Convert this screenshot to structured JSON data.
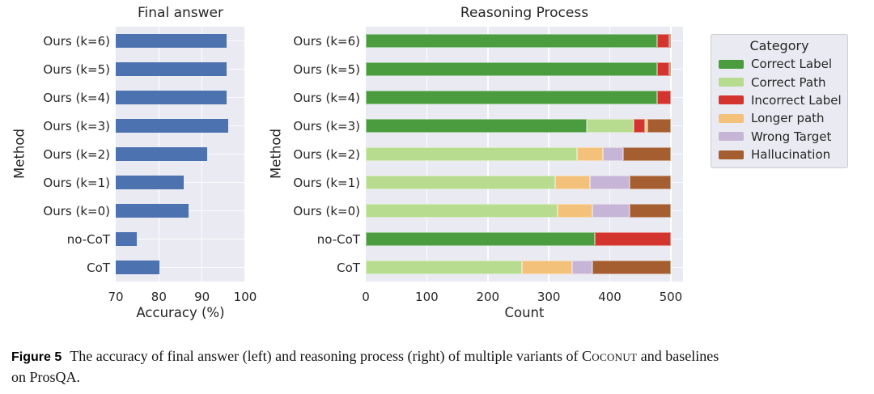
{
  "caption": {
    "label": "Figure 5",
    "text_before": "The accuracy of final answer (left) and reasoning process (right) of multiple variants of ",
    "smallcaps_word": "Coconut",
    "text_after": " and baselines",
    "line2": "on ProsQA."
  },
  "legend": {
    "title": "Category"
  },
  "colors": {
    "plot_background": "#eaeaf2",
    "gridline": "#ffffff",
    "bar_blue": "#4c72b0",
    "correct_label_green": "#4a9c3f",
    "correct_path_light_green": "#b7dc8f",
    "incorrect_label_red": "#d3342e",
    "longer_path_orange": "#f3c17a",
    "wrong_target_purple": "#c7b5d8",
    "hallucination_brown": "#a55e2f",
    "text": "#262626",
    "legend_border": "#cccccc"
  },
  "chart_data": [
    {
      "type": "bar",
      "orientation": "horizontal",
      "title": "Final answer",
      "xlabel": "Accuracy (%)",
      "ylabel": "Method",
      "categories": [
        "Ours (k=6)",
        "Ours (k=5)",
        "Ours (k=4)",
        "Ours (k=3)",
        "Ours (k=2)",
        "Ours (k=1)",
        "Ours (k=0)",
        "no-CoT",
        "CoT"
      ],
      "values": [
        95.6,
        95.6,
        95.7,
        96.0,
        91.1,
        85.8,
        86.9,
        74.9,
        80.2
      ],
      "xlim": [
        70,
        100
      ],
      "xticks": [
        70,
        80,
        90,
        100
      ],
      "bar_color": "#4c72b0",
      "grid": true,
      "legend_position": "none"
    },
    {
      "type": "stacked_bar",
      "orientation": "horizontal",
      "title": "Reasoning Process",
      "xlabel": "Count",
      "ylabel": "Method",
      "categories": [
        "Ours (k=6)",
        "Ours (k=5)",
        "Ours (k=4)",
        "Ours (k=3)",
        "Ours (k=2)",
        "Ours (k=1)",
        "Ours (k=0)",
        "no-CoT",
        "CoT"
      ],
      "series": [
        {
          "name": "Correct Label",
          "color": "#4a9c3f",
          "values": [
            477,
            477,
            478,
            362,
            0,
            0,
            0,
            375,
            0
          ]
        },
        {
          "name": "Correct Path",
          "color": "#b7dc8f",
          "values": [
            0,
            0,
            0,
            77,
            346,
            310,
            315,
            0,
            256
          ]
        },
        {
          "name": "Incorrect Label",
          "color": "#d3342e",
          "values": [
            20,
            20,
            22,
            19,
            0,
            0,
            0,
            125,
            0
          ]
        },
        {
          "name": "Longer path",
          "color": "#f3c17a",
          "values": [
            0,
            0,
            0,
            4,
            43,
            57,
            56,
            0,
            82
          ]
        },
        {
          "name": "Wrong Target",
          "color": "#c7b5d8",
          "values": [
            0,
            0,
            0,
            0,
            33,
            65,
            61,
            0,
            33
          ]
        },
        {
          "name": "Hallucination",
          "color": "#a55e2f",
          "values": [
            3,
            3,
            0,
            38,
            78,
            68,
            68,
            0,
            129
          ]
        }
      ],
      "xlim": [
        0,
        520
      ],
      "xticks": [
        0,
        100,
        200,
        300,
        400,
        500
      ],
      "grid": true,
      "legend_position": "right",
      "legend_title": "Category"
    }
  ]
}
